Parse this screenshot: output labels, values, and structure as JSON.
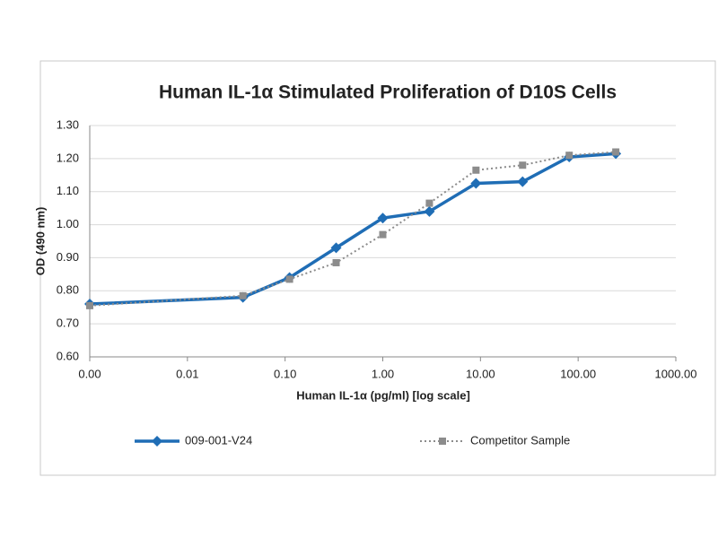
{
  "chart_data": {
    "type": "line",
    "title": "Human IL-1α Stimulated Proliferation of D10S Cells",
    "x_label": "Human IL-1α (pg/ml) [log scale]",
    "y_label": "OD (490 nm)",
    "xscale": "log",
    "xlim": [
      0.001,
      1000
    ],
    "xticks": [
      {
        "value": 0.001,
        "label": "0.00"
      },
      {
        "value": 0.01,
        "label": "0.01"
      },
      {
        "value": 0.1,
        "label": "0.10"
      },
      {
        "value": 1,
        "label": "1.00"
      },
      {
        "value": 10,
        "label": "10.00"
      },
      {
        "value": 100,
        "label": "100.00"
      },
      {
        "value": 1000,
        "label": "1000.00"
      }
    ],
    "ylim": [
      0.6,
      1.3
    ],
    "yticks": [
      {
        "value": 0.6,
        "label": "0.60"
      },
      {
        "value": 0.7,
        "label": "0.70"
      },
      {
        "value": 0.8,
        "label": "0.80"
      },
      {
        "value": 0.9,
        "label": "0.90"
      },
      {
        "value": 1.0,
        "label": "1.00"
      },
      {
        "value": 1.1,
        "label": "1.10"
      },
      {
        "value": 1.2,
        "label": "1.20"
      },
      {
        "value": 1.3,
        "label": "1.30"
      }
    ],
    "grid": true,
    "legend": "bottom",
    "x": [
      0.001,
      0.037,
      0.111,
      0.333,
      1,
      3,
      9,
      27,
      81,
      243
    ],
    "series": [
      {
        "name": "009-001-V24",
        "color": "#1f6db5",
        "marker": "diamond",
        "dash": "solid",
        "values": [
          0.76,
          0.78,
          0.84,
          0.93,
          1.02,
          1.04,
          1.125,
          1.13,
          1.205,
          1.215
        ]
      },
      {
        "name": "Competitor Sample",
        "color": "#8c8c8c",
        "marker": "square",
        "dash": "dotted",
        "values": [
          0.755,
          0.785,
          0.835,
          0.885,
          0.97,
          1.065,
          1.165,
          1.18,
          1.21,
          1.22
        ]
      }
    ]
  }
}
